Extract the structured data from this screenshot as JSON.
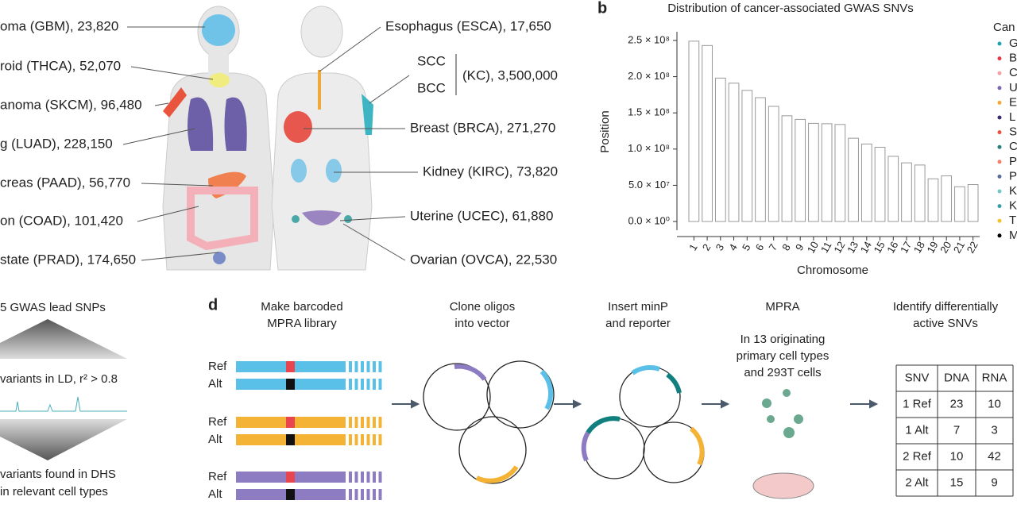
{
  "panel_a": {
    "left_labels": [
      "oma (GBM), 23,820",
      "roid (THCA), 52,070",
      "anoma (SKCM), 96,480",
      "g (LUAD), 228,150",
      "creas (PAAD), 56,770",
      "on (COAD), 101,420",
      "state (PRAD), 174,650"
    ],
    "right_labels": [
      "Esophagus (ESCA), 17,650",
      "Breast (BRCA), 271,270",
      "Kidney (KIRC), 73,820",
      "Uterine (UCEC), 61,880",
      "Ovarian (OVCA), 22,530"
    ],
    "kc": {
      "scc": "SCC",
      "bcc": "BCC",
      "label": "(KC), 3,500,000"
    }
  },
  "chart_data": {
    "type": "bar",
    "panel_label": "b",
    "title": "Distribution of cancer-associated GWAS SNVs",
    "x_label": "Chromosome",
    "y_label": "Position",
    "categories": [
      "1",
      "2",
      "3",
      "4",
      "5",
      "6",
      "7",
      "8",
      "9",
      "10",
      "11",
      "12",
      "13",
      "14",
      "15",
      "16",
      "17",
      "18",
      "19",
      "20",
      "21",
      "22"
    ],
    "values": [
      249000000,
      243000000,
      198000000,
      191000000,
      181000000,
      171000000,
      159000000,
      146000000,
      141000000,
      135500000,
      135000000,
      134000000,
      115000000,
      107000000,
      102500000,
      90000000,
      81000000,
      78000000,
      59000000,
      63000000,
      48000000,
      51000000
    ],
    "color": "#ffffff",
    "ylim": [
      -12000000,
      262000000
    ],
    "yticks": [
      {
        "value": 0,
        "label": "0.0 × 10⁰"
      },
      {
        "value": 50000000,
        "label": "5.0 × 10⁷"
      },
      {
        "value": 100000000,
        "label": "1.0 × 10⁸"
      },
      {
        "value": 150000000,
        "label": "1.5 × 10⁸"
      },
      {
        "value": 200000000,
        "label": "2.0 × 10⁸"
      },
      {
        "value": 250000000,
        "label": "2.5 × 10⁸"
      }
    ],
    "legend": {
      "title": "Can",
      "entries": [
        {
          "name": "G",
          "color": "#1fa3b0"
        },
        {
          "name": "B",
          "color": "#e63946"
        },
        {
          "name": "C",
          "color": "#f2a0a8"
        },
        {
          "name": "U",
          "color": "#7b68ae"
        },
        {
          "name": "E",
          "color": "#f2a93b"
        },
        {
          "name": "L",
          "color": "#3d2b6b"
        },
        {
          "name": "S",
          "color": "#e8543c"
        },
        {
          "name": "C",
          "color": "#2a7f7b"
        },
        {
          "name": "P",
          "color": "#f08070"
        },
        {
          "name": "P",
          "color": "#5b6c9a"
        },
        {
          "name": "K",
          "color": "#74c6c2"
        },
        {
          "name": "K",
          "color": "#3a9ea5"
        },
        {
          "name": "T",
          "color": "#f2c12e"
        },
        {
          "name": "M",
          "color": "#000000"
        }
      ]
    }
  },
  "panel_c": {
    "lines": [
      "5 GWAS lead SNPs",
      "variants in LD, r² > 0.8",
      "variants found in DHS",
      "in relevant cell types"
    ]
  },
  "panel_d": {
    "panel_label": "d",
    "steps": [
      [
        "Make barcoded",
        "MPRA library"
      ],
      [
        "Clone oligos",
        "into vector"
      ],
      [
        "Insert minP",
        "and reporter"
      ],
      [
        "MPRA"
      ],
      [
        "Identify differentially",
        "active SNVs"
      ]
    ],
    "mpra_text": [
      "In 13 originating",
      "primary cell types",
      "and 293T cells"
    ],
    "allele_labels": [
      "Ref",
      "Alt"
    ],
    "table": {
      "header": [
        "SNV",
        "DNA",
        "RNA"
      ],
      "rows": [
        [
          "1 Ref",
          "23",
          "10"
        ],
        [
          "1 Alt",
          "7",
          "3"
        ],
        [
          "2 Ref",
          "10",
          "42"
        ],
        [
          "2 Alt",
          "15",
          "9"
        ]
      ]
    }
  }
}
